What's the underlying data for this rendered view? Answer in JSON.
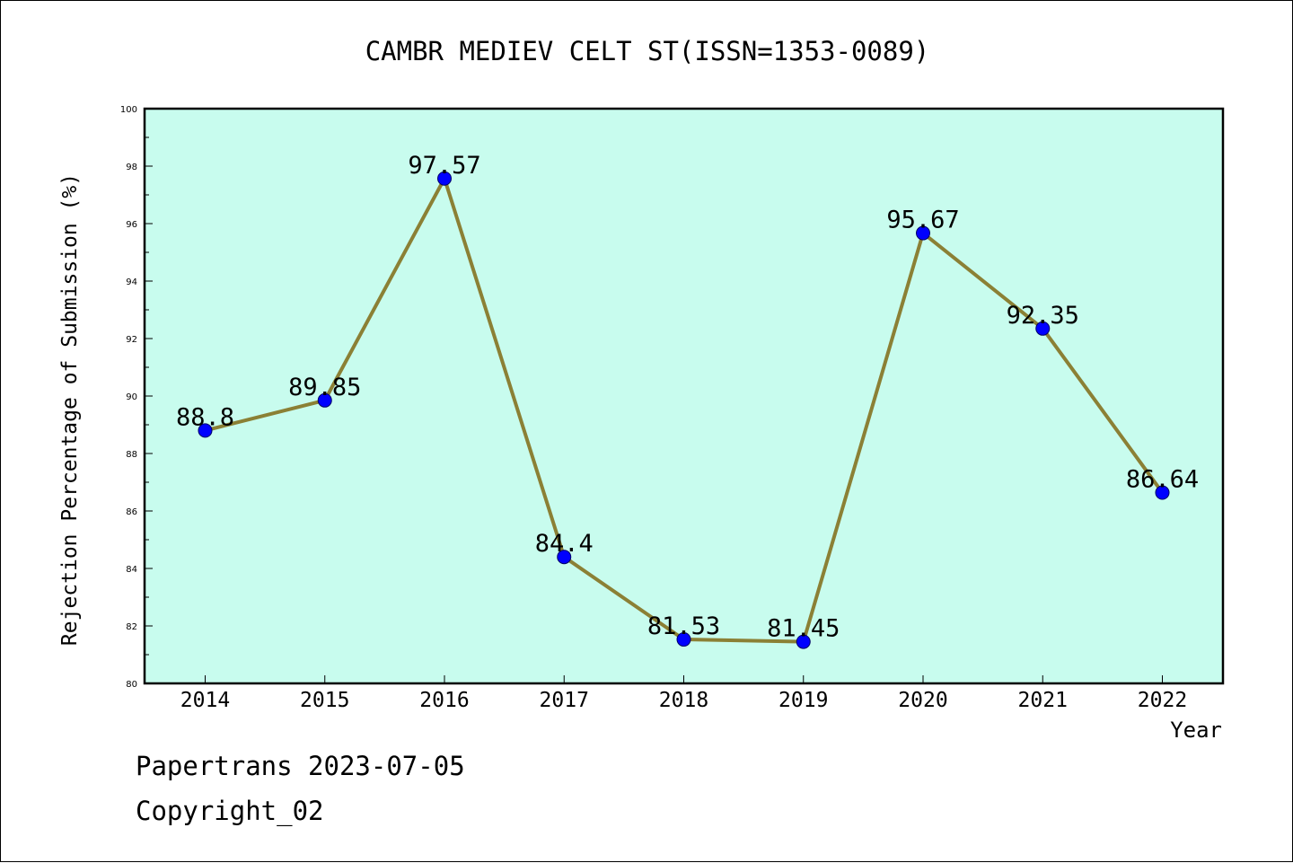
{
  "chart_data": {
    "type": "line",
    "title": "CAMBR MEDIEV CELT ST(ISSN=1353-0089)",
    "xlabel": "Year",
    "ylabel": "Rejection Percentage of Submission (%)",
    "categories": [
      "2014",
      "2015",
      "2016",
      "2017",
      "2018",
      "2019",
      "2020",
      "2021",
      "2022"
    ],
    "values": [
      88.8,
      89.85,
      97.57,
      84.4,
      81.53,
      81.45,
      95.67,
      92.35,
      86.64
    ],
    "data_labels": [
      "88.8",
      "89.85",
      "97.57",
      "84.4",
      "81.53",
      "81.45",
      "95.67",
      "92.35",
      "86.64"
    ],
    "ylim": [
      80,
      100
    ],
    "yticks": [
      "80",
      "82",
      "84",
      "86",
      "88",
      "90",
      "92",
      "94",
      "96",
      "98",
      "100"
    ],
    "grid": false,
    "colors": {
      "plot_background": "#c8fcee",
      "line": "#8b8035",
      "marker": "#0000ff"
    }
  },
  "footer": {
    "line1": "Papertrans 2023-07-05",
    "line2": "Copyright_02"
  }
}
